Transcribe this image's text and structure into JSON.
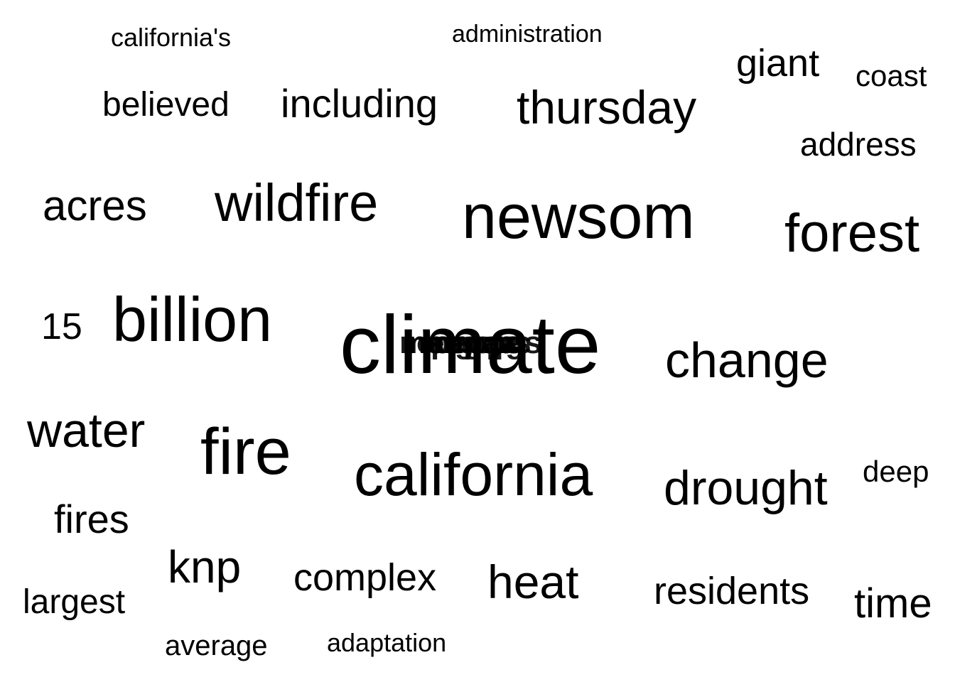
{
  "word_cloud": {
    "words": {
      "californias": "california's",
      "administration": "administration",
      "giant": "giant",
      "coast": "coast",
      "believed": "believed",
      "including": "including",
      "thursday": "thursday",
      "address": "address",
      "acres": "acres",
      "wildfire": "wildfire",
      "newsom": "newsom",
      "forest": "forest",
      "fifteen": "15",
      "billion": "billion",
      "climate": "climate",
      "change": "change",
      "water": "water",
      "fire": "fire",
      "california": "california",
      "drought": "drought",
      "deep": "deep",
      "fires": "fires",
      "knp": "knp",
      "complex": "complex",
      "heat": "heat",
      "residents": "residents",
      "time": "time",
      "largest": "largest",
      "average": "average",
      "adaptation": "adaptation"
    },
    "text_color": "#000000",
    "background_color": "#ffffff"
  }
}
